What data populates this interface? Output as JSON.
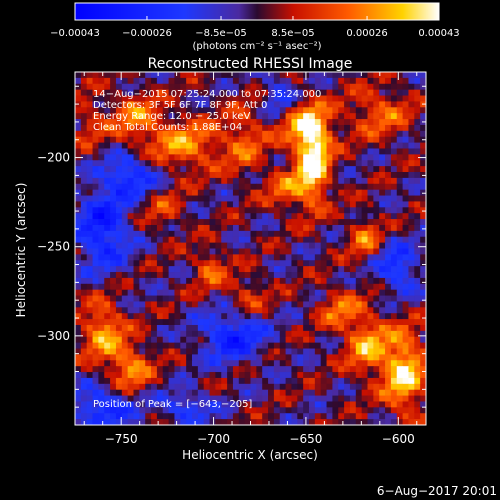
{
  "chart_data": {
    "type": "heatmap",
    "title": "Reconstructed RHESSI Image",
    "xlabel": "Heliocentric X (arcsec)",
    "ylabel": "Heliocentric Y (arcsec)",
    "xlim": [
      -775,
      -585
    ],
    "ylim": [
      -350,
      -152
    ],
    "x_ticks": [
      -750,
      -700,
      -650,
      -600
    ],
    "x_tick_labels": [
      "−750",
      "−700",
      "−650",
      "−600"
    ],
    "y_ticks": [
      -200,
      -250,
      -300
    ],
    "y_tick_labels": [
      "−200",
      "−250",
      "−300"
    ],
    "colorbar": {
      "range": [
        -0.00043,
        0.00043
      ],
      "ticks": [
        -0.00043,
        -0.00026,
        -8.5e-05,
        8.5e-05,
        0.00026,
        0.00043
      ],
      "tick_labels": [
        "−0.00043",
        "−0.00026",
        "−8.5e−05",
        "8.5e−05",
        "0.00026",
        "0.00043"
      ],
      "units": "(photons cm⁻² s⁻¹ asec⁻²)"
    },
    "annotations": [
      "14−Aug−2015 07:25:24.000 to 07:35:24.000",
      "Detectors: 3F 5F 6F 7F 8F 9F, Att 0",
      "Energy Range: 12.0 − 25.0 keV",
      "Clean    Total Counts: 1.88E+04"
    ],
    "peak_label": "Position of Peak = [−643,−205]",
    "peak": [
      -643,
      -205
    ],
    "hotspots": [
      {
        "x": -646,
        "y": -203,
        "intensity": 0.00043,
        "sx": 6,
        "sy": 16
      },
      {
        "x": -650,
        "y": -183,
        "intensity": 0.00028,
        "sx": 10,
        "sy": 10
      },
      {
        "x": -660,
        "y": -218,
        "intensity": 0.0002,
        "sx": 8,
        "sy": 8
      },
      {
        "x": -715,
        "y": -193,
        "intensity": 0.00026,
        "sx": 14,
        "sy": 10
      },
      {
        "x": -683,
        "y": -190,
        "intensity": 0.00018,
        "sx": 8,
        "sy": 14
      },
      {
        "x": -742,
        "y": -178,
        "intensity": 0.00022,
        "sx": 10,
        "sy": 10
      },
      {
        "x": -610,
        "y": -175,
        "intensity": 0.0002,
        "sx": 12,
        "sy": 10
      },
      {
        "x": -597,
        "y": -320,
        "intensity": 0.00038,
        "sx": 8,
        "sy": 16
      },
      {
        "x": -617,
        "y": -305,
        "intensity": 0.00028,
        "sx": 8,
        "sy": 12
      },
      {
        "x": -618,
        "y": -245,
        "intensity": 0.00022,
        "sx": 6,
        "sy": 8
      },
      {
        "x": -760,
        "y": -297,
        "intensity": 0.00028,
        "sx": 8,
        "sy": 12
      },
      {
        "x": -745,
        "y": -318,
        "intensity": 0.00026,
        "sx": 8,
        "sy": 10
      },
      {
        "x": -702,
        "y": -262,
        "intensity": 0.0002,
        "sx": 6,
        "sy": 8
      },
      {
        "x": -682,
        "y": -278,
        "intensity": 0.00016,
        "sx": 8,
        "sy": 8
      },
      {
        "x": -632,
        "y": -285,
        "intensity": 0.0002,
        "sx": 8,
        "sy": 8
      },
      {
        "x": -727,
        "y": -230,
        "intensity": 0.00014,
        "sx": 8,
        "sy": 8
      },
      {
        "x": -767,
        "y": -180,
        "intensity": 0.00012,
        "sx": 6,
        "sy": 12
      }
    ],
    "coldspots": [
      {
        "x": -760,
        "y": -240,
        "intensity": -0.00032,
        "sx": 10,
        "sy": 16
      },
      {
        "x": -745,
        "y": -210,
        "intensity": -0.00028,
        "sx": 10,
        "sy": 8
      },
      {
        "x": -690,
        "y": -300,
        "intensity": -0.0003,
        "sx": 12,
        "sy": 10
      },
      {
        "x": -760,
        "y": -340,
        "intensity": -0.00028,
        "sx": 12,
        "sy": 8
      },
      {
        "x": -715,
        "y": -340,
        "intensity": -0.00022,
        "sx": 10,
        "sy": 6
      },
      {
        "x": -600,
        "y": -262,
        "intensity": -0.00025,
        "sx": 8,
        "sy": 10
      },
      {
        "x": -665,
        "y": -165,
        "intensity": -0.0002,
        "sx": 6,
        "sy": 8
      }
    ]
  },
  "footer_date": "6−Aug−2017 20:01"
}
